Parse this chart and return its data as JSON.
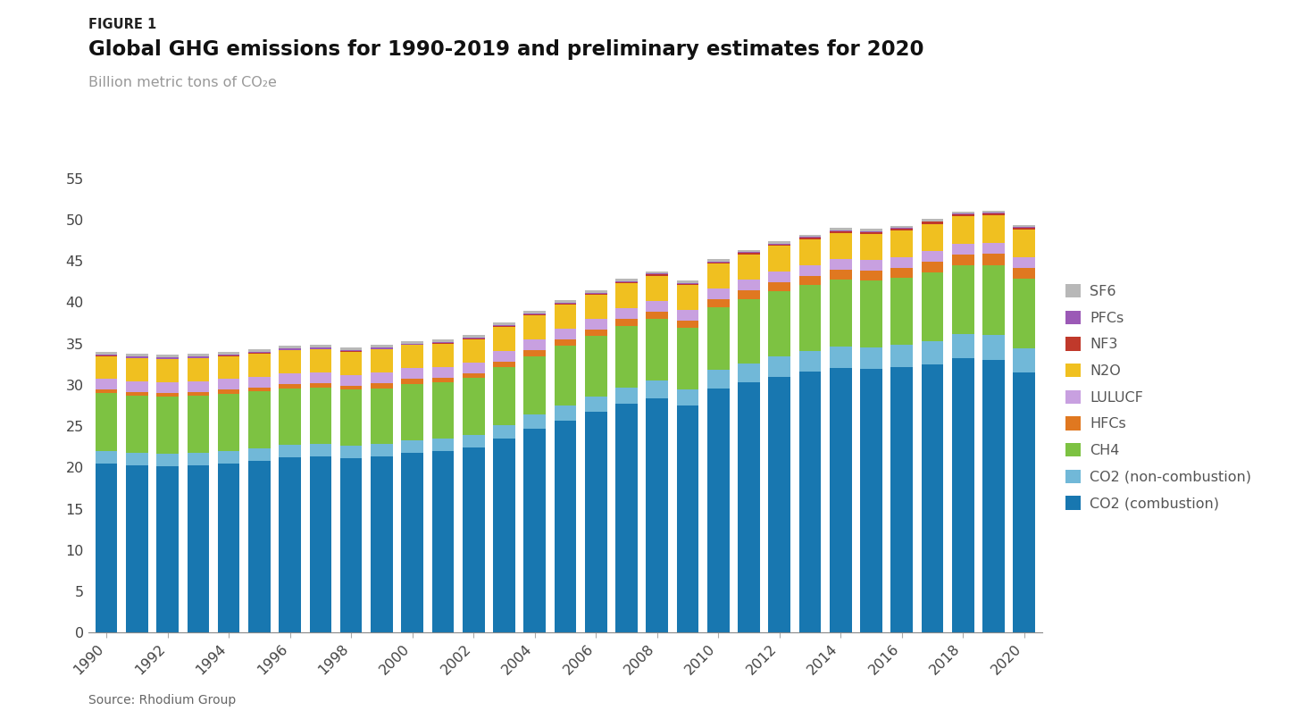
{
  "title_label": "FIGURE 1",
  "title": "Global GHG emissions for 1990-2019 and preliminary estimates for 2020",
  "subtitle": "Billion metric tons of CO₂e",
  "source": "Source: Rhodium Group",
  "years": [
    1990,
    1991,
    1992,
    1993,
    1994,
    1995,
    1996,
    1997,
    1998,
    1999,
    2000,
    2001,
    2002,
    2003,
    2004,
    2005,
    2006,
    2007,
    2008,
    2009,
    2010,
    2011,
    2012,
    2013,
    2014,
    2015,
    2016,
    2017,
    2018,
    2019,
    2020
  ],
  "series": {
    "CO2 (combustion)": [
      20.5,
      20.3,
      20.2,
      20.3,
      20.5,
      20.8,
      21.2,
      21.3,
      21.1,
      21.3,
      21.8,
      22.0,
      22.4,
      23.5,
      24.7,
      25.7,
      26.7,
      27.7,
      28.4,
      27.5,
      29.6,
      30.3,
      31.0,
      31.6,
      32.0,
      31.9,
      32.1,
      32.5,
      33.2,
      33.0,
      31.5
    ],
    "CO2 (non-combustion)": [
      1.5,
      1.5,
      1.5,
      1.5,
      1.5,
      1.5,
      1.5,
      1.5,
      1.5,
      1.5,
      1.5,
      1.5,
      1.5,
      1.6,
      1.7,
      1.8,
      1.9,
      2.0,
      2.1,
      2.0,
      2.2,
      2.3,
      2.4,
      2.5,
      2.6,
      2.6,
      2.7,
      2.8,
      2.9,
      3.0,
      2.9
    ],
    "CH4": [
      7.0,
      6.9,
      6.9,
      6.9,
      6.9,
      6.9,
      6.9,
      6.9,
      6.8,
      6.8,
      6.8,
      6.8,
      6.9,
      7.0,
      7.1,
      7.2,
      7.3,
      7.4,
      7.5,
      7.4,
      7.6,
      7.8,
      7.9,
      8.0,
      8.1,
      8.1,
      8.2,
      8.3,
      8.4,
      8.5,
      8.4
    ],
    "HFCs": [
      0.4,
      0.4,
      0.4,
      0.4,
      0.5,
      0.5,
      0.5,
      0.5,
      0.5,
      0.6,
      0.6,
      0.6,
      0.6,
      0.7,
      0.7,
      0.8,
      0.8,
      0.9,
      0.9,
      0.9,
      1.0,
      1.0,
      1.1,
      1.1,
      1.2,
      1.2,
      1.2,
      1.3,
      1.3,
      1.4,
      1.4
    ],
    "LULUCF": [
      1.3,
      1.3,
      1.3,
      1.3,
      1.3,
      1.3,
      1.3,
      1.3,
      1.3,
      1.3,
      1.3,
      1.3,
      1.3,
      1.3,
      1.3,
      1.3,
      1.3,
      1.3,
      1.3,
      1.3,
      1.3,
      1.3,
      1.3,
      1.3,
      1.3,
      1.3,
      1.3,
      1.3,
      1.3,
      1.3,
      1.3
    ],
    "N2O": [
      2.8,
      2.8,
      2.8,
      2.8,
      2.8,
      2.8,
      2.8,
      2.8,
      2.8,
      2.8,
      2.8,
      2.8,
      2.8,
      2.9,
      2.9,
      2.9,
      2.9,
      3.0,
      3.0,
      3.0,
      3.0,
      3.1,
      3.1,
      3.1,
      3.2,
      3.2,
      3.2,
      3.3,
      3.3,
      3.3,
      3.3
    ],
    "NF3": [
      0.02,
      0.02,
      0.03,
      0.03,
      0.04,
      0.04,
      0.05,
      0.05,
      0.06,
      0.06,
      0.07,
      0.07,
      0.08,
      0.09,
      0.1,
      0.11,
      0.12,
      0.13,
      0.14,
      0.14,
      0.15,
      0.16,
      0.17,
      0.18,
      0.19,
      0.2,
      0.21,
      0.22,
      0.23,
      0.24,
      0.23
    ],
    "PFCs": [
      0.18,
      0.18,
      0.17,
      0.17,
      0.16,
      0.16,
      0.16,
      0.15,
      0.15,
      0.14,
      0.14,
      0.14,
      0.13,
      0.13,
      0.13,
      0.12,
      0.12,
      0.12,
      0.12,
      0.11,
      0.11,
      0.11,
      0.11,
      0.11,
      0.11,
      0.1,
      0.1,
      0.1,
      0.1,
      0.1,
      0.1
    ],
    "SF6": [
      0.32,
      0.32,
      0.32,
      0.32,
      0.32,
      0.32,
      0.32,
      0.32,
      0.31,
      0.31,
      0.31,
      0.3,
      0.3,
      0.3,
      0.3,
      0.29,
      0.29,
      0.29,
      0.28,
      0.28,
      0.28,
      0.27,
      0.27,
      0.27,
      0.26,
      0.26,
      0.26,
      0.25,
      0.25,
      0.25,
      0.24
    ]
  },
  "colors": {
    "CO2 (combustion)": "#1877b0",
    "CO2 (non-combustion)": "#71b8d8",
    "CH4": "#7dc242",
    "HFCs": "#e07820",
    "LULUCF": "#c8a0e0",
    "N2O": "#f0c020",
    "NF3": "#c0392b",
    "PFCs": "#9b59b6",
    "SF6": "#b8b8b8"
  },
  "ylim": [
    0,
    57
  ],
  "yticks": [
    0,
    5,
    10,
    15,
    20,
    25,
    30,
    35,
    40,
    45,
    50,
    55
  ],
  "background_color": "#ffffff",
  "bar_width": 0.72,
  "legend_order": [
    "SF6",
    "PFCs",
    "NF3",
    "N2O",
    "LULUCF",
    "HFCs",
    "CH4",
    "CO2 (non-combustion)",
    "CO2 (combustion)"
  ],
  "stack_order": [
    "CO2 (combustion)",
    "CO2 (non-combustion)",
    "CH4",
    "HFCs",
    "LULUCF",
    "N2O",
    "NF3",
    "PFCs",
    "SF6"
  ]
}
